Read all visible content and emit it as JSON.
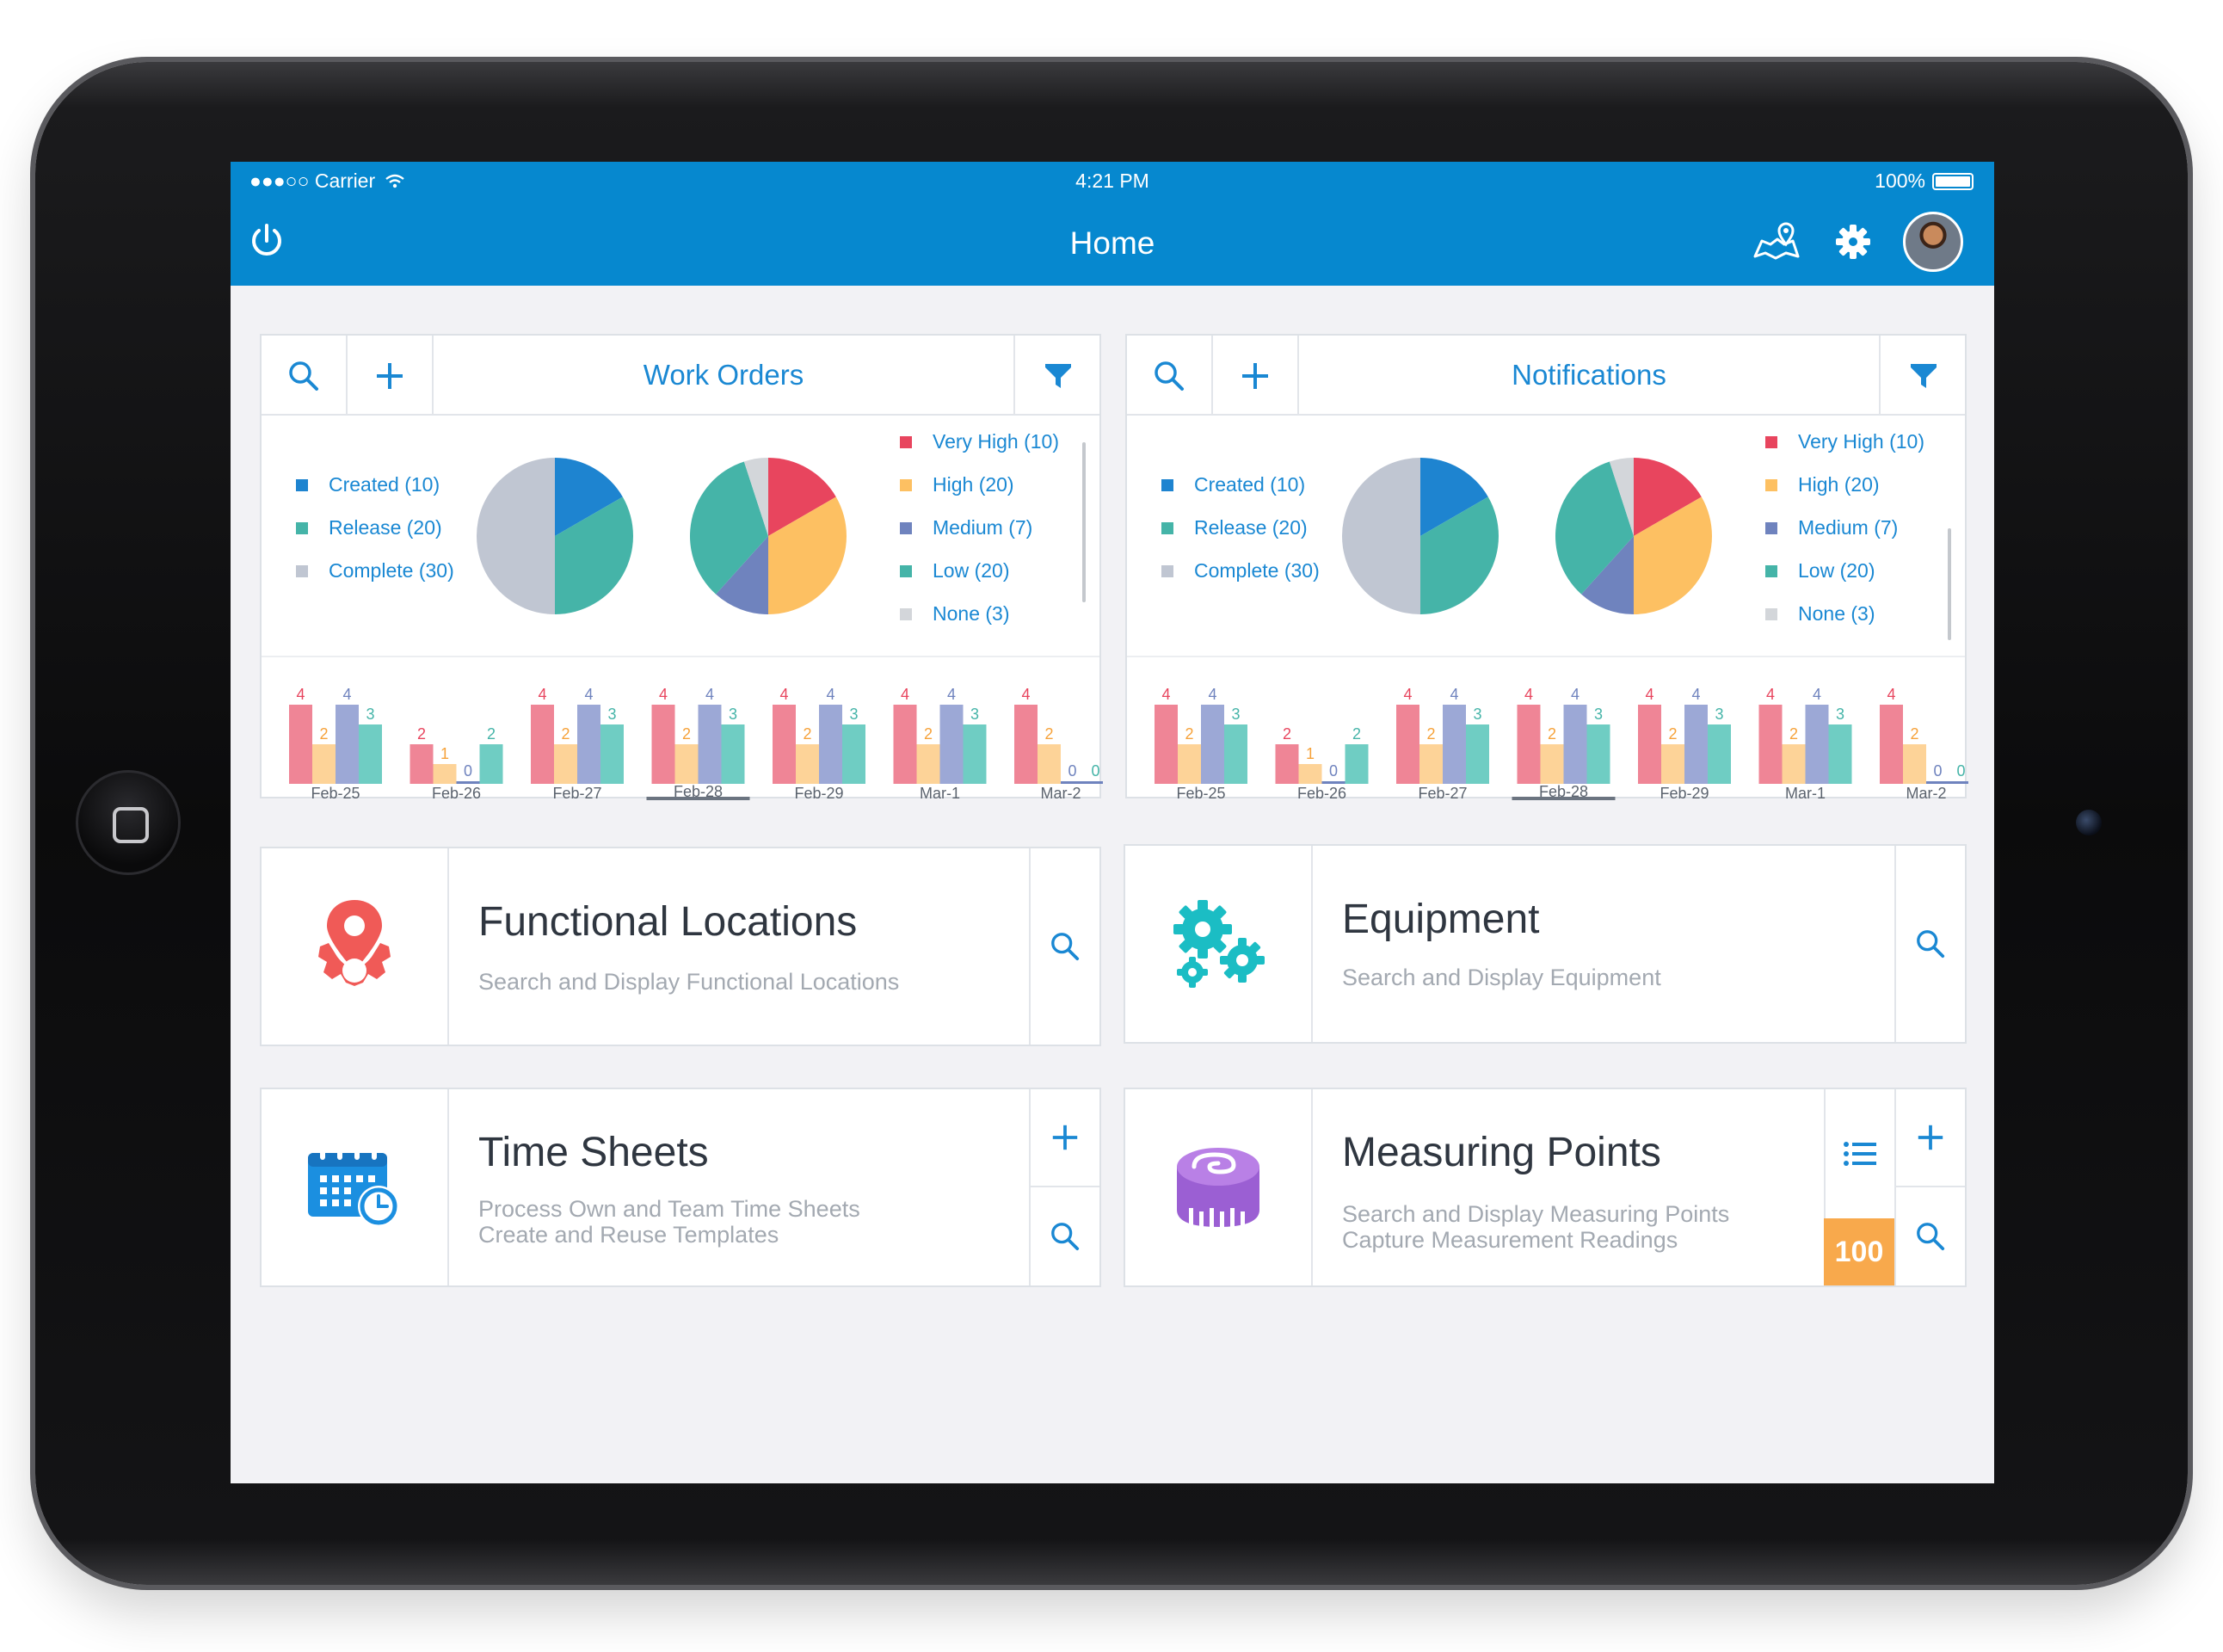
{
  "statusbar": {
    "carrier": "●●●○○ Carrier",
    "time": "4:21 PM",
    "battery": "100%"
  },
  "navbar": {
    "title": "Home",
    "icons": [
      "power-icon",
      "map-pin-icon",
      "gear-icon",
      "avatar"
    ]
  },
  "colors": {
    "primary": "#0688cf",
    "very_high": "#e8455e",
    "high": "#fdc062",
    "medium": "#6f83be",
    "low": "#45b4a8",
    "none": "#d3d6da",
    "created": "#1e84d0",
    "release": "#45b4a8",
    "complete": "#c0c6d2",
    "badge": "#f8a94c"
  },
  "work_orders": {
    "title": "Work Orders",
    "status_legend": [
      "Created (10)",
      "Release (20)",
      "Complete (30)"
    ],
    "priority_legend": [
      "Very High (10)",
      "High (20)",
      "Medium (7)",
      "Low (20)",
      "None (3)"
    ],
    "selected_date": "Feb-28"
  },
  "notifications": {
    "title": "Notifications",
    "status_legend": [
      "Created (10)",
      "Release (20)",
      "Complete (30)"
    ],
    "priority_legend": [
      "Very High (10)",
      "High (20)",
      "Medium (7)",
      "Low (20)",
      "None (3)"
    ],
    "selected_date": "Feb-28"
  },
  "chart_data": [
    {
      "type": "pie",
      "categories": [
        "Created",
        "Release",
        "Complete"
      ],
      "values": [
        10,
        20,
        30
      ]
    },
    {
      "type": "pie",
      "categories": [
        "Very High",
        "High",
        "Medium",
        "Low",
        "None"
      ],
      "values": [
        10,
        20,
        7,
        20,
        3
      ]
    },
    {
      "type": "bar",
      "categories": [
        "Feb-25",
        "Feb-26",
        "Feb-27",
        "Feb-28",
        "Feb-29",
        "Mar-1",
        "Mar-2"
      ],
      "series": [
        {
          "values": [
            4,
            2,
            4,
            4,
            4,
            4,
            4
          ]
        },
        {
          "values": [
            2,
            1,
            2,
            2,
            2,
            2,
            2
          ]
        },
        {
          "values": [
            4,
            0,
            4,
            4,
            4,
            4,
            0
          ]
        },
        {
          "values": [
            3,
            2,
            3,
            3,
            3,
            3,
            0
          ]
        }
      ]
    }
  ],
  "tiles": {
    "functional_locations": {
      "title": "Functional Locations",
      "sub1": "Search and Display Functional Locations"
    },
    "equipment": {
      "title": "Equipment",
      "sub1": "Search and Display Equipment"
    },
    "time_sheets": {
      "title": "Time Sheets",
      "sub1": "Process Own and Team Time Sheets",
      "sub2": "Create and Reuse Templates"
    },
    "measuring_points": {
      "title": "Measuring Points",
      "sub1": "Search and Display Measuring Points",
      "sub2": "Capture Measurement Readings",
      "badge": "100"
    }
  }
}
